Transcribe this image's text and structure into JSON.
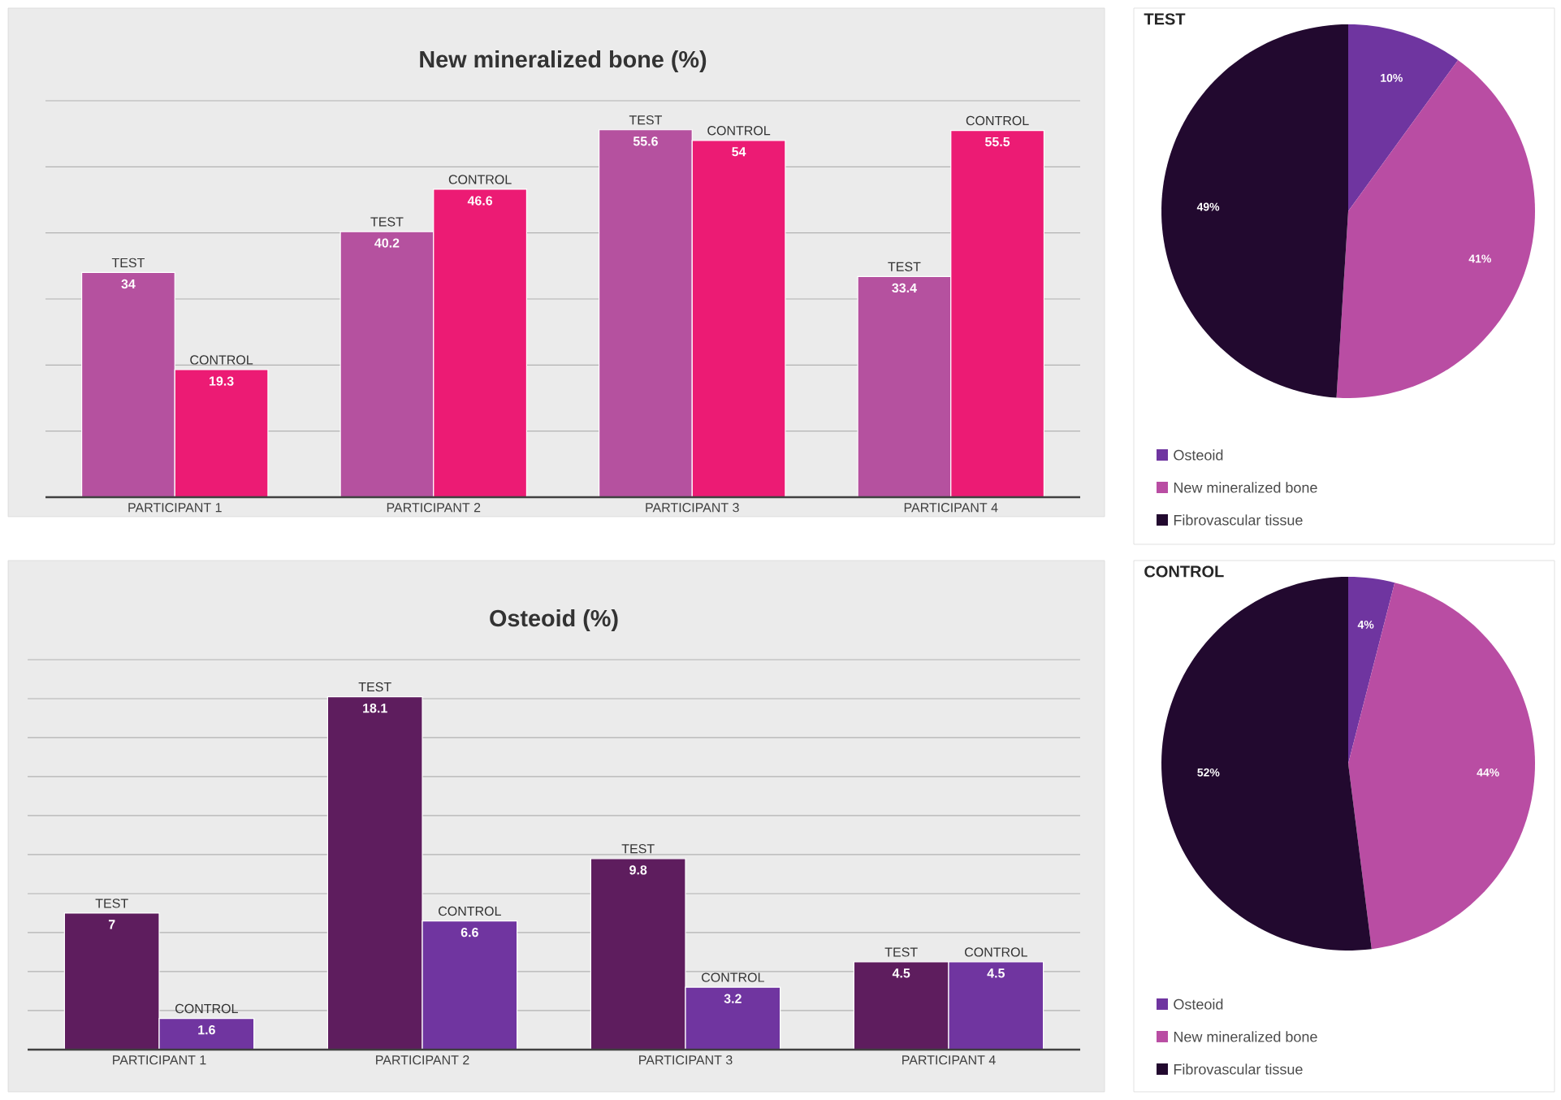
{
  "chart_data": [
    {
      "type": "bar",
      "title": "New mineralized bone (%)",
      "categories": [
        "PARTICIPANT 1",
        "PARTICIPANT 2",
        "PARTICIPANT 3",
        "PARTICIPANT 4"
      ],
      "series": [
        {
          "name": "TEST",
          "color": "#b5519f",
          "values": [
            34,
            40.2,
            55.6,
            33.4
          ]
        },
        {
          "name": "CONTROL",
          "color": "#ec1b74",
          "values": [
            19.3,
            46.6,
            54,
            55.5
          ]
        }
      ],
      "ylim": [
        0,
        60
      ],
      "yticks": [
        {
          "value": 0,
          "label": null
        },
        {
          "value": 10,
          "label": null
        },
        {
          "value": 20,
          "label": null
        },
        {
          "value": 30,
          "label": null
        },
        {
          "value": 40,
          "label": null
        },
        {
          "value": 50,
          "label": null
        },
        {
          "value": 60,
          "label": null
        }
      ],
      "grid": "y",
      "data_labels": true,
      "tick_labels": "x"
    },
    {
      "type": "pie",
      "title": "TEST",
      "categories": [
        "Osteoid",
        "New mineralized bone",
        "Fibrovascular tissue"
      ],
      "values": [
        10,
        41,
        49
      ],
      "colors": [
        "#6f35a0",
        "#b94da3",
        "#22092f"
      ],
      "value_labels": [
        "10%",
        "41%",
        "49%"
      ],
      "legend": "bottom"
    },
    {
      "type": "bar",
      "title": "Osteoid (%)",
      "categories": [
        "PARTICIPANT 1",
        "PARTICIPANT 2",
        "PARTICIPANT 3",
        "PARTICIPANT 4"
      ],
      "series": [
        {
          "name": "TEST",
          "color": "#5e1d5e",
          "values": [
            7,
            18.1,
            9.8,
            4.5
          ]
        },
        {
          "name": "CONTROL",
          "color": "#7035a0",
          "values": [
            1.6,
            6.6,
            3.2,
            4.5
          ]
        }
      ],
      "ylim": [
        0,
        20
      ],
      "yticks": [
        {
          "value": 0,
          "label": null
        },
        {
          "value": 2,
          "label": null
        },
        {
          "value": 4,
          "label": null
        },
        {
          "value": 6,
          "label": null
        },
        {
          "value": 8,
          "label": null
        },
        {
          "value": 10,
          "label": null
        },
        {
          "value": 12,
          "label": null
        },
        {
          "value": 14,
          "label": null
        },
        {
          "value": 16,
          "label": null
        },
        {
          "value": 18,
          "label": null
        },
        {
          "value": 20,
          "label": null
        }
      ],
      "grid": "y",
      "data_labels": true,
      "tick_labels": "x"
    },
    {
      "type": "pie",
      "title": "CONTROL",
      "categories": [
        "Osteoid",
        "New mineralized bone",
        "Fibrovascular tissue"
      ],
      "values": [
        4,
        44,
        52
      ],
      "colors": [
        "#6f35a0",
        "#b94da3",
        "#22092f"
      ],
      "value_labels": [
        "4%",
        "44%",
        "52%"
      ],
      "legend": "bottom"
    }
  ]
}
